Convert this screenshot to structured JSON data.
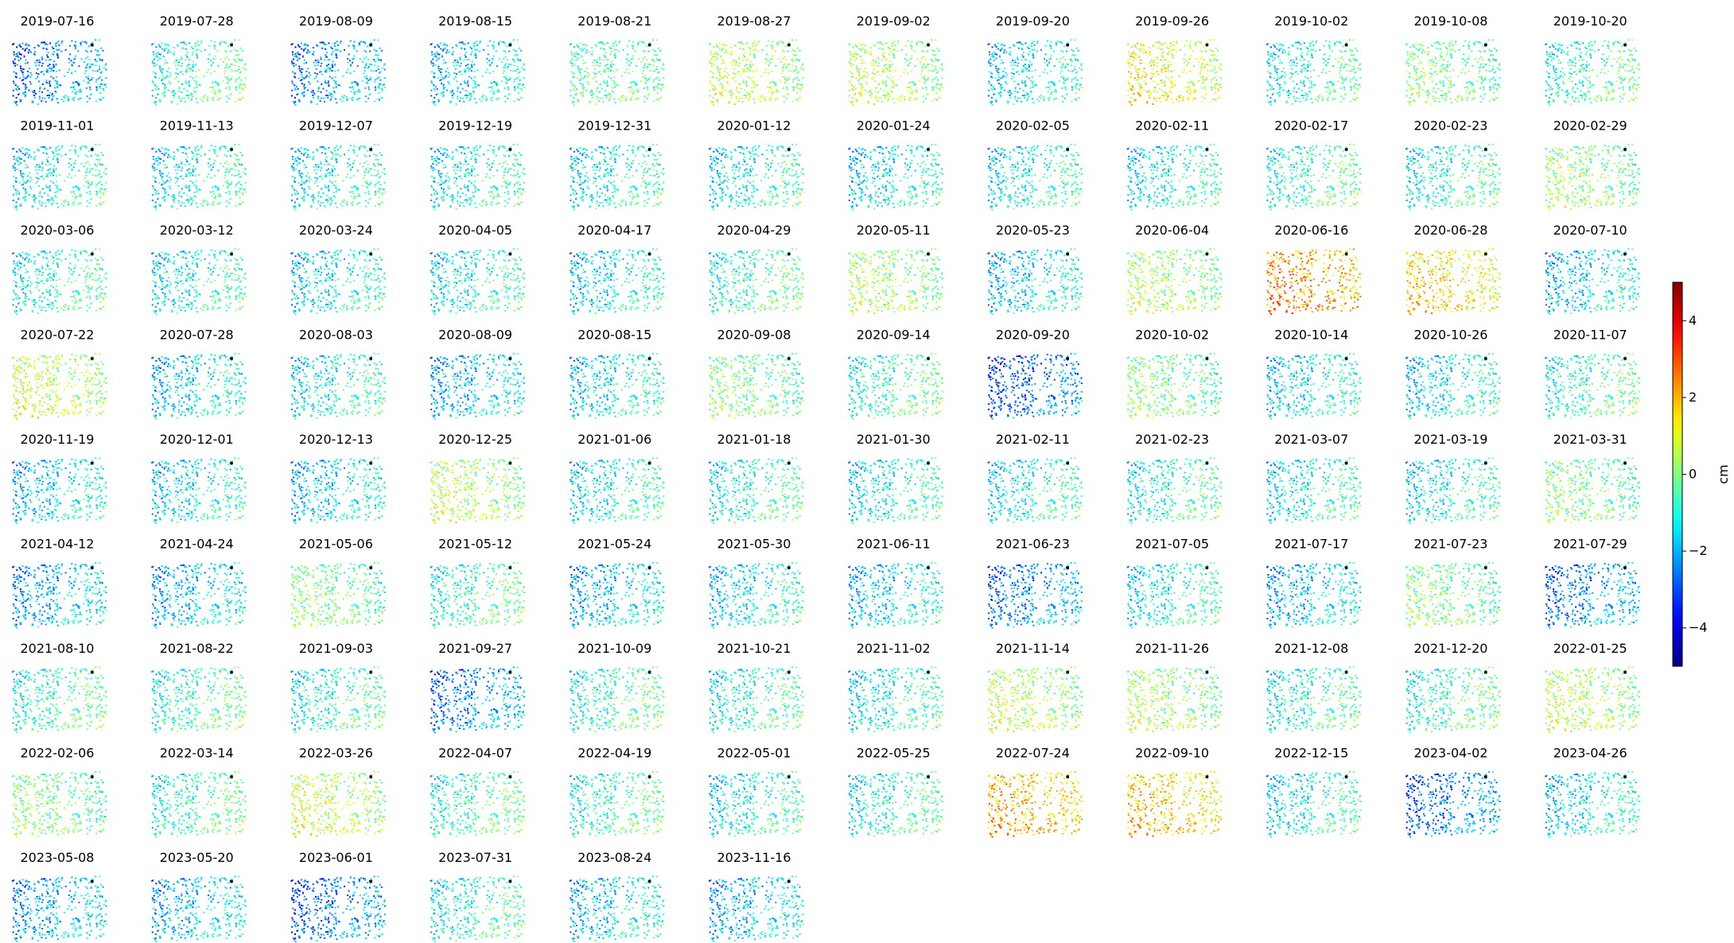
{
  "chart_data": {
    "type": "scatter",
    "layout": "small-multiples",
    "title": "",
    "xlabel": "",
    "ylabel": "",
    "panels_per_row": 12,
    "panel_titles": [
      "2019-07-16",
      "2019-07-28",
      "2019-08-09",
      "2019-08-15",
      "2019-08-21",
      "2019-08-27",
      "2019-09-02",
      "2019-09-20",
      "2019-09-26",
      "2019-10-02",
      "2019-10-08",
      "2019-10-20",
      "2019-11-01",
      "2019-11-13",
      "2019-12-07",
      "2019-12-19",
      "2019-12-31",
      "2020-01-12",
      "2020-01-24",
      "2020-02-05",
      "2020-02-11",
      "2020-02-17",
      "2020-02-23",
      "2020-02-29",
      "2020-03-06",
      "2020-03-12",
      "2020-03-24",
      "2020-04-05",
      "2020-04-17",
      "2020-04-29",
      "2020-05-11",
      "2020-05-23",
      "2020-06-04",
      "2020-06-16",
      "2020-06-28",
      "2020-07-10",
      "2020-07-22",
      "2020-07-28",
      "2020-08-03",
      "2020-08-09",
      "2020-08-15",
      "2020-09-08",
      "2020-09-14",
      "2020-09-20",
      "2020-10-02",
      "2020-10-14",
      "2020-10-26",
      "2020-11-07",
      "2020-11-19",
      "2020-12-01",
      "2020-12-13",
      "2020-12-25",
      "2021-01-06",
      "2021-01-18",
      "2021-01-30",
      "2021-02-11",
      "2021-02-23",
      "2021-03-07",
      "2021-03-19",
      "2021-03-31",
      "2021-04-12",
      "2021-04-24",
      "2021-05-06",
      "2021-05-12",
      "2021-05-24",
      "2021-05-30",
      "2021-06-11",
      "2021-06-23",
      "2021-07-05",
      "2021-07-17",
      "2021-07-23",
      "2021-07-29",
      "2021-08-10",
      "2021-08-22",
      "2021-09-03",
      "2021-09-27",
      "2021-10-09",
      "2021-10-21",
      "2021-11-02",
      "2021-11-14",
      "2021-11-26",
      "2021-12-08",
      "2021-12-20",
      "2022-01-25",
      "2022-02-06",
      "2022-03-14",
      "2022-03-26",
      "2022-04-07",
      "2022-04-19",
      "2022-05-01",
      "2022-05-25",
      "2022-07-24",
      "2022-09-10",
      "2022-12-15",
      "2023-04-02",
      "2023-04-26",
      "2023-05-08",
      "2023-05-20",
      "2023-06-01",
      "2023-07-31",
      "2023-08-24",
      "2023-11-16"
    ],
    "panel_mean_values": [
      -2.2,
      -0.6,
      -2.0,
      -1.4,
      -0.5,
      0.2,
      0.1,
      -1.2,
      0.8,
      -0.8,
      -0.4,
      -0.6,
      -1.0,
      -1.0,
      -1.0,
      -1.0,
      -1.0,
      -1.0,
      -1.2,
      -1.0,
      -1.0,
      -0.6,
      -0.8,
      -0.2,
      -0.8,
      -1.0,
      -1.2,
      -1.0,
      -1.2,
      -0.6,
      0.0,
      -1.4,
      0.0,
      2.0,
      1.2,
      -1.4,
      0.4,
      -1.4,
      -1.0,
      -1.6,
      -1.2,
      -0.4,
      -0.6,
      -2.6,
      -0.4,
      -1.2,
      -1.2,
      -0.6,
      -1.4,
      -1.2,
      -1.4,
      0.2,
      -1.0,
      -0.8,
      -1.0,
      -1.0,
      -0.8,
      -1.0,
      -1.0,
      -0.4,
      -1.8,
      -1.6,
      -0.4,
      -0.6,
      -1.6,
      -1.2,
      -1.4,
      -2.2,
      -1.0,
      -1.6,
      -0.4,
      -2.2,
      -0.6,
      -0.6,
      -0.8,
      -2.2,
      -0.6,
      -0.8,
      -1.0,
      0.2,
      0.0,
      -0.8,
      -0.6,
      0.2,
      -0.4,
      -0.6,
      0.4,
      -0.6,
      -0.6,
      -1.0,
      -0.8,
      1.6,
      1.4,
      -1.0,
      -2.4,
      -1.2,
      -1.8,
      -1.6,
      -2.4,
      -0.8,
      -1.4,
      -1.6
    ],
    "panel_spread": 1.1,
    "panel_x_range": [
      0,
      1
    ],
    "panel_y_range": [
      0,
      1
    ],
    "colormap": "jet",
    "colorbar": {
      "label": "cm",
      "vmin": -5,
      "vmax": 5,
      "ticks": [
        -4,
        -2,
        0,
        2,
        4
      ],
      "tick_labels": [
        "−4",
        "−2",
        "0",
        "2",
        "4"
      ]
    },
    "reference_point_color": "#000000",
    "axes_visible": false,
    "grid": false
  }
}
